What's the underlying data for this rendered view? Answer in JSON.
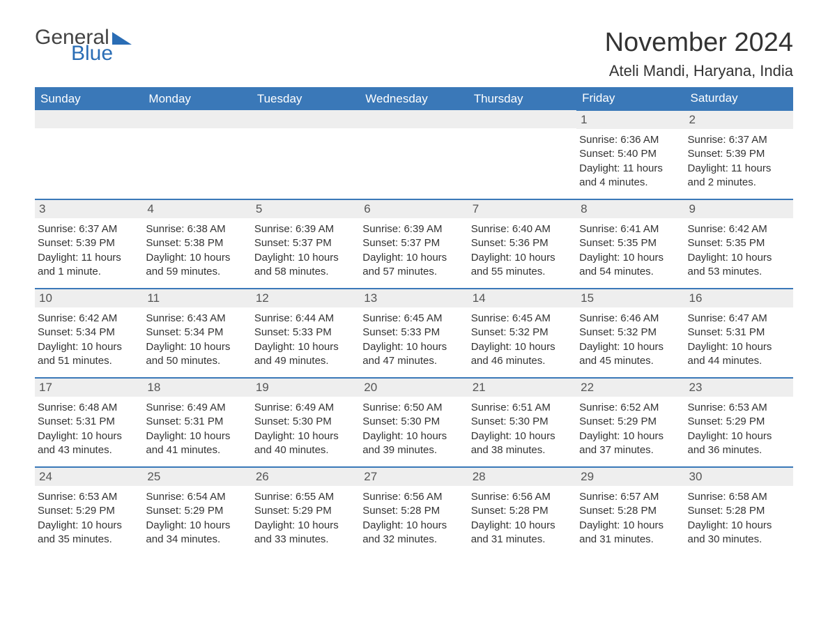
{
  "logo": {
    "text1": "General",
    "text2": "Blue"
  },
  "header": {
    "month_title": "November 2024",
    "location": "Ateli Mandi, Haryana, India"
  },
  "styling": {
    "header_bg": "#3a78b8",
    "header_text": "#ffffff",
    "daynum_bg": "#eeeeee",
    "row_border": "#3a78b8",
    "body_text": "#333333",
    "page_bg": "#ffffff",
    "logo_blue": "#2a6db5",
    "th_fontsize": 17,
    "daynum_fontsize": 17,
    "body_fontsize": 15,
    "title_fontsize": 38,
    "location_fontsize": 22
  },
  "columns": [
    "Sunday",
    "Monday",
    "Tuesday",
    "Wednesday",
    "Thursday",
    "Friday",
    "Saturday"
  ],
  "weeks": [
    [
      null,
      null,
      null,
      null,
      null,
      {
        "n": "1",
        "sunrise": "Sunrise: 6:36 AM",
        "sunset": "Sunset: 5:40 PM",
        "daylight": "Daylight: 11 hours and 4 minutes."
      },
      {
        "n": "2",
        "sunrise": "Sunrise: 6:37 AM",
        "sunset": "Sunset: 5:39 PM",
        "daylight": "Daylight: 11 hours and 2 minutes."
      }
    ],
    [
      {
        "n": "3",
        "sunrise": "Sunrise: 6:37 AM",
        "sunset": "Sunset: 5:39 PM",
        "daylight": "Daylight: 11 hours and 1 minute."
      },
      {
        "n": "4",
        "sunrise": "Sunrise: 6:38 AM",
        "sunset": "Sunset: 5:38 PM",
        "daylight": "Daylight: 10 hours and 59 minutes."
      },
      {
        "n": "5",
        "sunrise": "Sunrise: 6:39 AM",
        "sunset": "Sunset: 5:37 PM",
        "daylight": "Daylight: 10 hours and 58 minutes."
      },
      {
        "n": "6",
        "sunrise": "Sunrise: 6:39 AM",
        "sunset": "Sunset: 5:37 PM",
        "daylight": "Daylight: 10 hours and 57 minutes."
      },
      {
        "n": "7",
        "sunrise": "Sunrise: 6:40 AM",
        "sunset": "Sunset: 5:36 PM",
        "daylight": "Daylight: 10 hours and 55 minutes."
      },
      {
        "n": "8",
        "sunrise": "Sunrise: 6:41 AM",
        "sunset": "Sunset: 5:35 PM",
        "daylight": "Daylight: 10 hours and 54 minutes."
      },
      {
        "n": "9",
        "sunrise": "Sunrise: 6:42 AM",
        "sunset": "Sunset: 5:35 PM",
        "daylight": "Daylight: 10 hours and 53 minutes."
      }
    ],
    [
      {
        "n": "10",
        "sunrise": "Sunrise: 6:42 AM",
        "sunset": "Sunset: 5:34 PM",
        "daylight": "Daylight: 10 hours and 51 minutes."
      },
      {
        "n": "11",
        "sunrise": "Sunrise: 6:43 AM",
        "sunset": "Sunset: 5:34 PM",
        "daylight": "Daylight: 10 hours and 50 minutes."
      },
      {
        "n": "12",
        "sunrise": "Sunrise: 6:44 AM",
        "sunset": "Sunset: 5:33 PM",
        "daylight": "Daylight: 10 hours and 49 minutes."
      },
      {
        "n": "13",
        "sunrise": "Sunrise: 6:45 AM",
        "sunset": "Sunset: 5:33 PM",
        "daylight": "Daylight: 10 hours and 47 minutes."
      },
      {
        "n": "14",
        "sunrise": "Sunrise: 6:45 AM",
        "sunset": "Sunset: 5:32 PM",
        "daylight": "Daylight: 10 hours and 46 minutes."
      },
      {
        "n": "15",
        "sunrise": "Sunrise: 6:46 AM",
        "sunset": "Sunset: 5:32 PM",
        "daylight": "Daylight: 10 hours and 45 minutes."
      },
      {
        "n": "16",
        "sunrise": "Sunrise: 6:47 AM",
        "sunset": "Sunset: 5:31 PM",
        "daylight": "Daylight: 10 hours and 44 minutes."
      }
    ],
    [
      {
        "n": "17",
        "sunrise": "Sunrise: 6:48 AM",
        "sunset": "Sunset: 5:31 PM",
        "daylight": "Daylight: 10 hours and 43 minutes."
      },
      {
        "n": "18",
        "sunrise": "Sunrise: 6:49 AM",
        "sunset": "Sunset: 5:31 PM",
        "daylight": "Daylight: 10 hours and 41 minutes."
      },
      {
        "n": "19",
        "sunrise": "Sunrise: 6:49 AM",
        "sunset": "Sunset: 5:30 PM",
        "daylight": "Daylight: 10 hours and 40 minutes."
      },
      {
        "n": "20",
        "sunrise": "Sunrise: 6:50 AM",
        "sunset": "Sunset: 5:30 PM",
        "daylight": "Daylight: 10 hours and 39 minutes."
      },
      {
        "n": "21",
        "sunrise": "Sunrise: 6:51 AM",
        "sunset": "Sunset: 5:30 PM",
        "daylight": "Daylight: 10 hours and 38 minutes."
      },
      {
        "n": "22",
        "sunrise": "Sunrise: 6:52 AM",
        "sunset": "Sunset: 5:29 PM",
        "daylight": "Daylight: 10 hours and 37 minutes."
      },
      {
        "n": "23",
        "sunrise": "Sunrise: 6:53 AM",
        "sunset": "Sunset: 5:29 PM",
        "daylight": "Daylight: 10 hours and 36 minutes."
      }
    ],
    [
      {
        "n": "24",
        "sunrise": "Sunrise: 6:53 AM",
        "sunset": "Sunset: 5:29 PM",
        "daylight": "Daylight: 10 hours and 35 minutes."
      },
      {
        "n": "25",
        "sunrise": "Sunrise: 6:54 AM",
        "sunset": "Sunset: 5:29 PM",
        "daylight": "Daylight: 10 hours and 34 minutes."
      },
      {
        "n": "26",
        "sunrise": "Sunrise: 6:55 AM",
        "sunset": "Sunset: 5:29 PM",
        "daylight": "Daylight: 10 hours and 33 minutes."
      },
      {
        "n": "27",
        "sunrise": "Sunrise: 6:56 AM",
        "sunset": "Sunset: 5:28 PM",
        "daylight": "Daylight: 10 hours and 32 minutes."
      },
      {
        "n": "28",
        "sunrise": "Sunrise: 6:56 AM",
        "sunset": "Sunset: 5:28 PM",
        "daylight": "Daylight: 10 hours and 31 minutes."
      },
      {
        "n": "29",
        "sunrise": "Sunrise: 6:57 AM",
        "sunset": "Sunset: 5:28 PM",
        "daylight": "Daylight: 10 hours and 31 minutes."
      },
      {
        "n": "30",
        "sunrise": "Sunrise: 6:58 AM",
        "sunset": "Sunset: 5:28 PM",
        "daylight": "Daylight: 10 hours and 30 minutes."
      }
    ]
  ]
}
